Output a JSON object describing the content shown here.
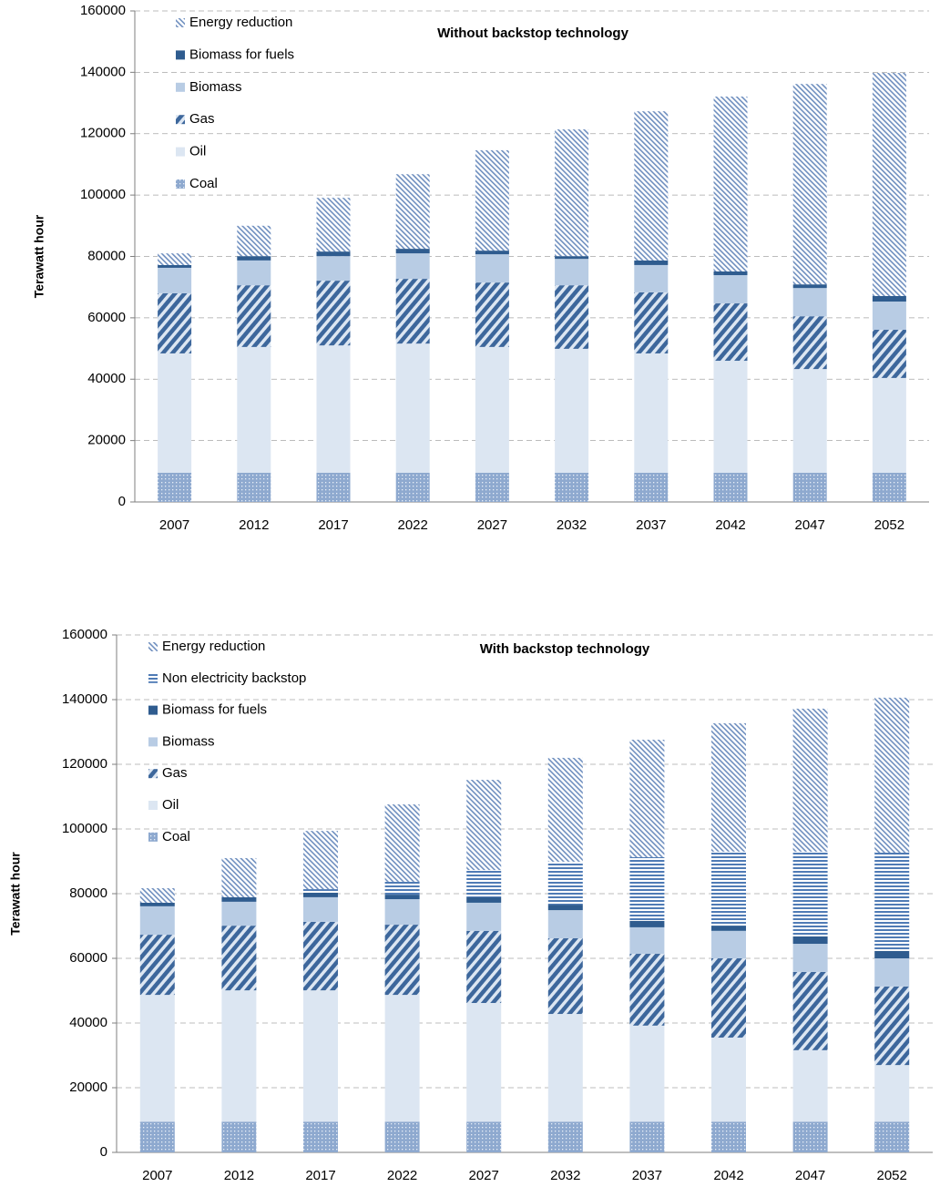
{
  "chart_data": [
    {
      "type": "stacked-bar",
      "title": "Without backstop technology",
      "y_label": "Terawatt hour",
      "categories": [
        "2007",
        "2012",
        "2017",
        "2022",
        "2027",
        "2032",
        "2037",
        "2042",
        "2047",
        "2052"
      ],
      "ylim": [
        0,
        160000
      ],
      "yticks": [
        0,
        20000,
        40000,
        60000,
        80000,
        100000,
        120000,
        140000,
        160000
      ],
      "grid": true,
      "legend": "upper left",
      "series": [
        {
          "name": "Coal",
          "color": "#8ea9cf",
          "pattern": "dots",
          "values": [
            9500,
            9500,
            9500,
            9500,
            9500,
            9500,
            9500,
            9500,
            9500,
            9500
          ]
        },
        {
          "name": "Oil",
          "color": "#dce6f2",
          "pattern": "solid",
          "values": [
            38900,
            41000,
            41500,
            42100,
            41000,
            40400,
            38900,
            36500,
            33800,
            30900
          ]
        },
        {
          "name": "Gas",
          "color": "#3d679c",
          "pattern": "diagonal",
          "values": [
            19600,
            20100,
            21100,
            21100,
            21000,
            20700,
            19900,
            18700,
            17200,
            15700
          ]
        },
        {
          "name": "Biomass",
          "color": "#b8cce4",
          "pattern": "solid",
          "values": [
            8300,
            8100,
            8000,
            8300,
            9200,
            8600,
            8900,
            9200,
            9200,
            9200
          ]
        },
        {
          "name": "Biomass for fuels",
          "color": "#2f5c8f",
          "pattern": "solid",
          "values": [
            900,
            1400,
            1500,
            1500,
            1200,
            900,
            1500,
            1200,
            1200,
            1800
          ]
        },
        {
          "name": "Energy reduction",
          "color": "#6f8fbf",
          "pattern": "fine-diagonal",
          "values": [
            3800,
            9900,
            17500,
            24300,
            32700,
            41300,
            48600,
            57000,
            65300,
            72700
          ]
        }
      ]
    },
    {
      "type": "stacked-bar",
      "title": "With backstop technology",
      "y_label": "Terawatt hour",
      "categories": [
        "2007",
        "2012",
        "2017",
        "2022",
        "2027",
        "2032",
        "2037",
        "2042",
        "2047",
        "2052"
      ],
      "ylim": [
        0,
        160000
      ],
      "yticks": [
        0,
        20000,
        40000,
        60000,
        80000,
        100000,
        120000,
        140000,
        160000
      ],
      "grid": true,
      "legend": "upper left",
      "series": [
        {
          "name": "Coal",
          "color": "#8ea9cf",
          "pattern": "dots",
          "values": [
            9500,
            9500,
            9500,
            9500,
            9500,
            9500,
            9500,
            9500,
            9500,
            9500
          ]
        },
        {
          "name": "Oil",
          "color": "#dce6f2",
          "pattern": "solid",
          "values": [
            39200,
            40600,
            40600,
            39200,
            36700,
            33300,
            29700,
            26000,
            22100,
            17500
          ]
        },
        {
          "name": "Gas",
          "color": "#3d679c",
          "pattern": "diagonal",
          "values": [
            18600,
            20000,
            21200,
            21700,
            22300,
            23400,
            22200,
            24500,
            24200,
            24300
          ]
        },
        {
          "name": "Biomass",
          "color": "#b8cce4",
          "pattern": "solid",
          "values": [
            8800,
            7400,
            7600,
            7900,
            8700,
            8700,
            8200,
            8500,
            8700,
            8700
          ]
        },
        {
          "name": "Biomass for fuels",
          "color": "#2f5c8f",
          "pattern": "solid",
          "values": [
            1100,
            1400,
            1400,
            1400,
            1700,
            1700,
            2000,
            1600,
            2300,
            2300
          ]
        },
        {
          "name": "Non electricity backstop",
          "color": "#4f7bb5",
          "pattern": "horizontal",
          "values": [
            0,
            0,
            1100,
            4000,
            8400,
            13300,
            19700,
            22900,
            26200,
            30400
          ]
        },
        {
          "name": "Energy reduction",
          "color": "#6f8fbf",
          "pattern": "fine-diagonal",
          "values": [
            4500,
            12100,
            18000,
            23900,
            27900,
            32100,
            36300,
            39700,
            44200,
            47900
          ]
        }
      ]
    }
  ]
}
